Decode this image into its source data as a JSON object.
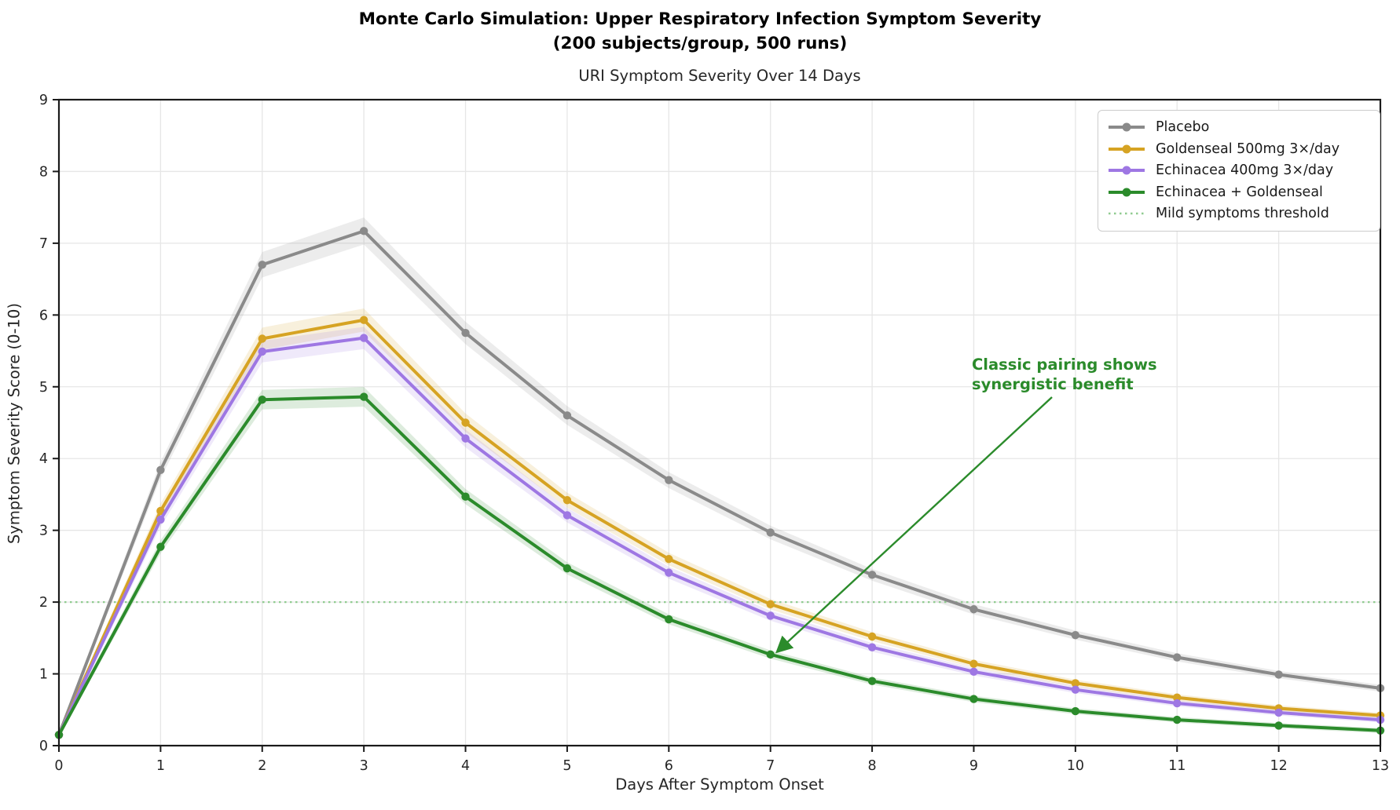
{
  "figure": {
    "title_line1": "Monte Carlo Simulation: Upper Respiratory Infection Symptom Severity",
    "title_line2": "(200 subjects/group, 500 runs)"
  },
  "chart_data": {
    "type": "line",
    "title": "URI Symptom Severity Over 14 Days",
    "xlabel": "Days After Symptom Onset",
    "ylabel": "Symptom Severity Score (0-10)",
    "xlim": [
      0,
      13
    ],
    "ylim": [
      0,
      9
    ],
    "xticks": [
      0,
      1,
      2,
      3,
      4,
      5,
      6,
      7,
      8,
      9,
      10,
      11,
      12,
      13
    ],
    "yticks": [
      0,
      1,
      2,
      3,
      4,
      5,
      6,
      7,
      8,
      9
    ],
    "grid": true,
    "legend_position": "upper right",
    "x": [
      0,
      1,
      2,
      3,
      4,
      5,
      6,
      7,
      8,
      9,
      10,
      11,
      12,
      13
    ],
    "series": [
      {
        "name": "Placebo",
        "color": "#8a8a8a",
        "values": [
          0.15,
          3.84,
          6.7,
          7.17,
          5.75,
          4.6,
          3.7,
          2.97,
          2.38,
          1.9,
          1.54,
          1.23,
          0.99,
          0.8
        ]
      },
      {
        "name": "Goldenseal 500mg 3×/day",
        "color": "#d6a323",
        "values": [
          0.15,
          3.27,
          5.67,
          5.93,
          4.5,
          3.42,
          2.6,
          1.97,
          1.52,
          1.14,
          0.87,
          0.67,
          0.52,
          0.42
        ]
      },
      {
        "name": "Echinacea 400mg 3×/day",
        "color": "#9e77e3",
        "values": [
          0.15,
          3.15,
          5.49,
          5.68,
          4.28,
          3.21,
          2.41,
          1.81,
          1.37,
          1.03,
          0.78,
          0.59,
          0.46,
          0.36
        ]
      },
      {
        "name": "Echinacea + Goldenseal",
        "color": "#2b8b2b",
        "values": [
          0.15,
          2.77,
          4.82,
          4.86,
          3.47,
          2.47,
          1.76,
          1.27,
          0.9,
          0.65,
          0.48,
          0.36,
          0.28,
          0.21
        ]
      }
    ],
    "threshold": {
      "label": "Mild symptoms threshold",
      "value": 2,
      "color": "#90cc90",
      "style": "dotted"
    },
    "annotation": {
      "text_line1": "Classic pairing shows",
      "text_line2": "synergistic benefit",
      "color": "#2b8b2b",
      "points_to": {
        "series": "Echinacea + Goldenseal",
        "day": 7,
        "value": 1.27
      }
    }
  }
}
